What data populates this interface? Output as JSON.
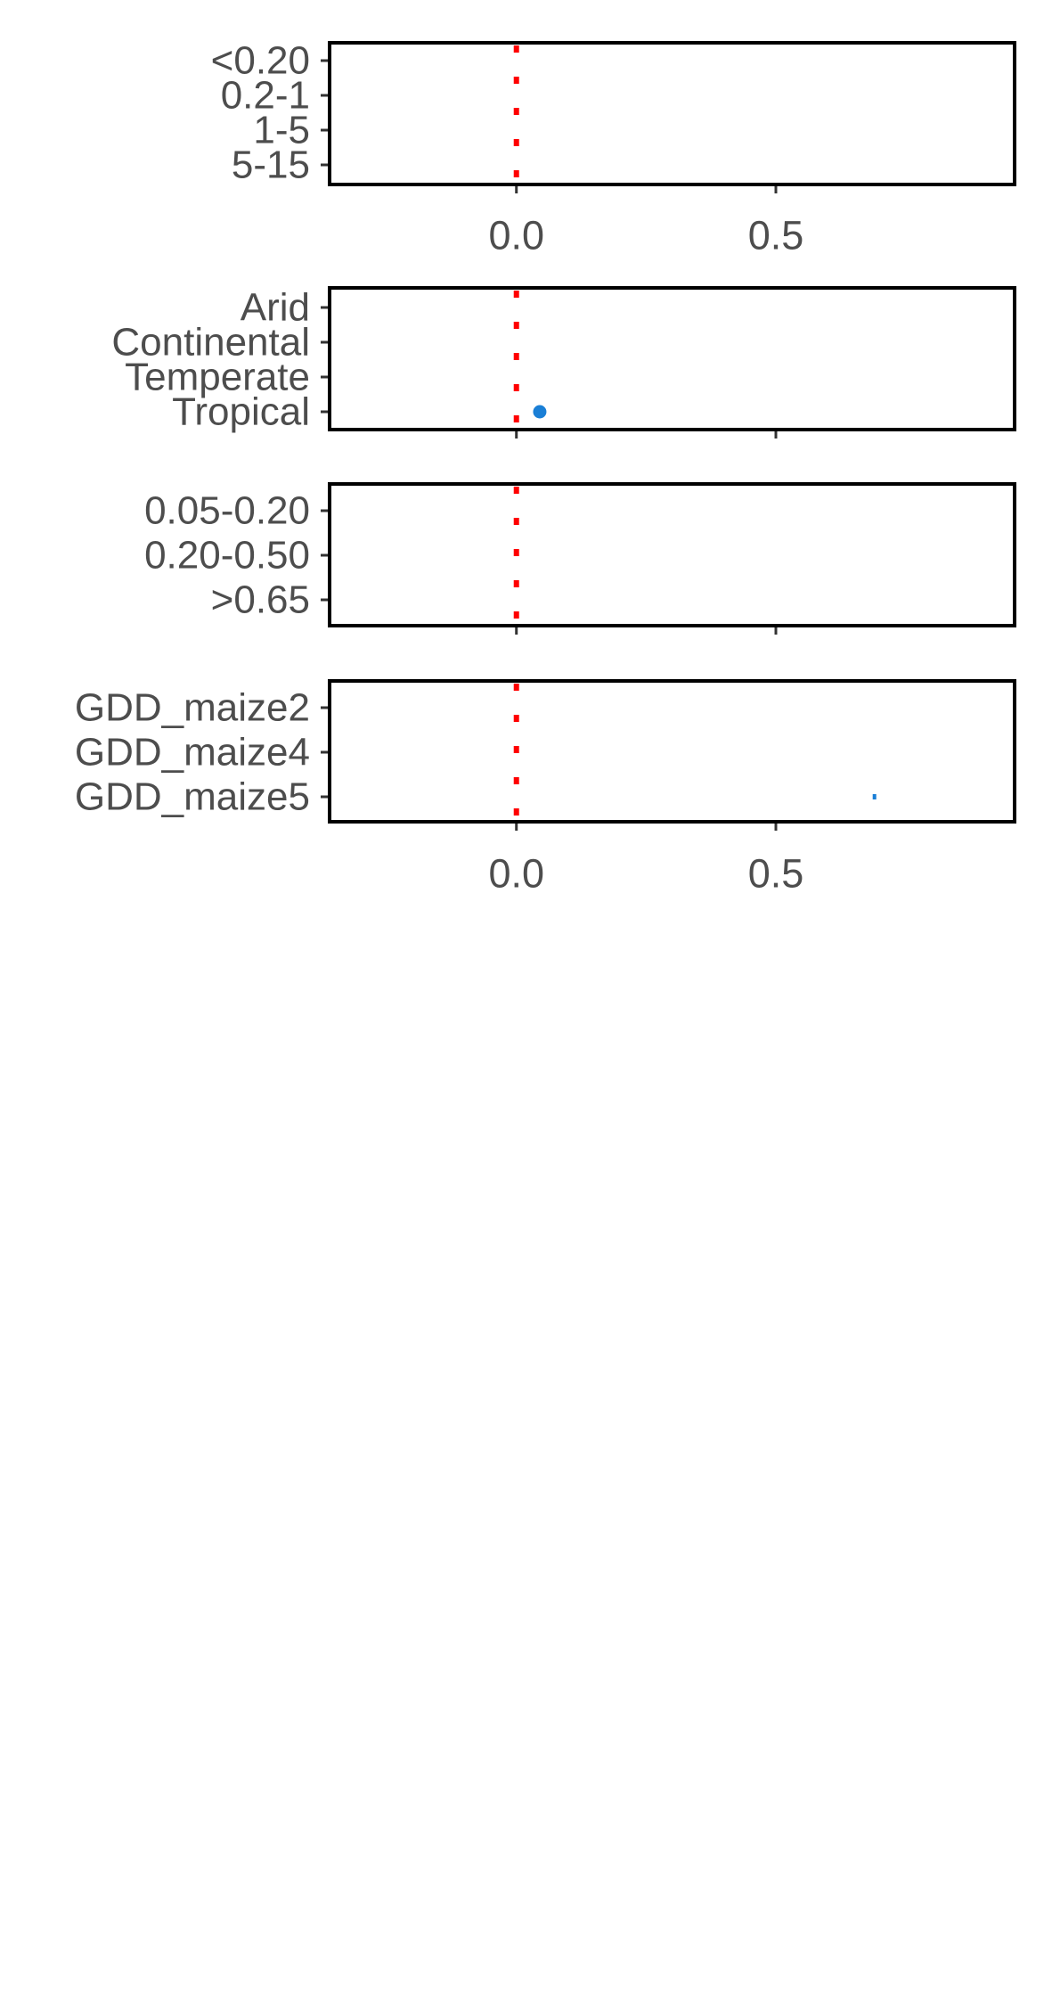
{
  "chart_data": [
    {
      "type": "scatter",
      "categories": [
        "<0.20",
        "0.2-1",
        "1-5",
        "5-15"
      ],
      "xlim": [
        -0.36,
        0.96
      ],
      "x_ticks": [
        "0.0",
        "0.5"
      ],
      "show_x_tick_labels": true,
      "reference_line": {
        "x": 0,
        "color": "#ff0000",
        "style": "dotted"
      },
      "points": []
    },
    {
      "type": "scatter",
      "categories": [
        "Arid",
        "Continental",
        "Temperate",
        "Tropical"
      ],
      "xlim": [
        -0.36,
        0.96
      ],
      "x_ticks": [
        "0.0",
        "0.5"
      ],
      "show_x_tick_labels": false,
      "reference_line": {
        "x": 0,
        "color": "#ff0000",
        "style": "dotted"
      },
      "points": [
        {
          "category": "Tropical",
          "x": 0.045,
          "color": "#1a7fd6",
          "marker": "dot"
        }
      ]
    },
    {
      "type": "scatter",
      "categories": [
        "0.05-0.20",
        "0.20-0.50",
        ">0.65"
      ],
      "xlim": [
        -0.36,
        0.96
      ],
      "x_ticks": [
        "0.0",
        "0.5"
      ],
      "show_x_tick_labels": false,
      "reference_line": {
        "x": 0,
        "color": "#ff0000",
        "style": "dotted"
      },
      "points": []
    },
    {
      "type": "scatter",
      "categories": [
        "GDD_maize2",
        "GDD_maize4",
        "GDD_maize5"
      ],
      "xlim": [
        -0.36,
        0.96
      ],
      "x_ticks": [
        "0.0",
        "0.5"
      ],
      "show_x_tick_labels": true,
      "reference_line": {
        "x": 0,
        "color": "#ff0000",
        "style": "dotted"
      },
      "points": [
        {
          "category": "GDD_maize5",
          "x": 0.69,
          "color": "#1a7fd6",
          "marker": "tick"
        }
      ]
    }
  ]
}
